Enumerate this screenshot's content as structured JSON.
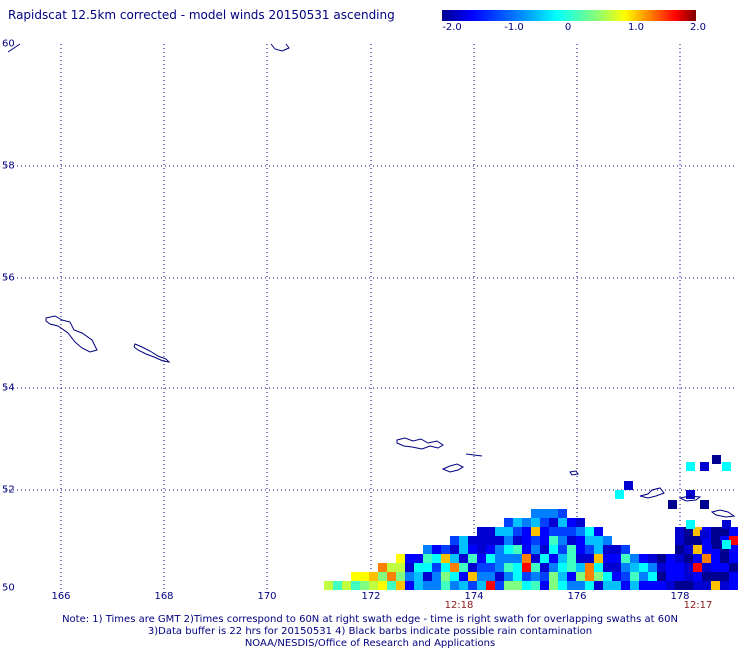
{
  "title": "Rapidscat 12.5km corrected - model winds 20150531 ascending",
  "colorbar": {
    "labels": [
      "-2.0",
      "-1.0",
      "0",
      "1.0",
      "2.0"
    ],
    "colors": [
      "#000080",
      "#0000ff",
      "#0080ff",
      "#00ffff",
      "#80ff80",
      "#ffff00",
      "#ff8000",
      "#ff0000",
      "#800000"
    ]
  },
  "y_ticks": [
    "60",
    "58",
    "56",
    "54",
    "52",
    "50"
  ],
  "x_ticks": [
    "166",
    "168",
    "170",
    "172",
    "174",
    "176",
    "178"
  ],
  "swath_times": [
    "12:18",
    "12:17"
  ],
  "footer": {
    "line1": "Note: 1) Times are GMT 2)Times correspond to 60N at right swath edge - time is right swath for overlapping swaths at 60N",
    "line2": "3)Data buffer is 22 hrs for 20150531 4) Black barbs indicate possible rain contamination",
    "line3": "NOAA/NESDIS/Office of Research and Applications"
  },
  "map_data": {
    "lon_range": [
      164.9,
      178.7
    ],
    "lat_range": [
      50.0,
      60.0
    ],
    "grid": "dotted",
    "land_outline_color": "#000080"
  }
}
